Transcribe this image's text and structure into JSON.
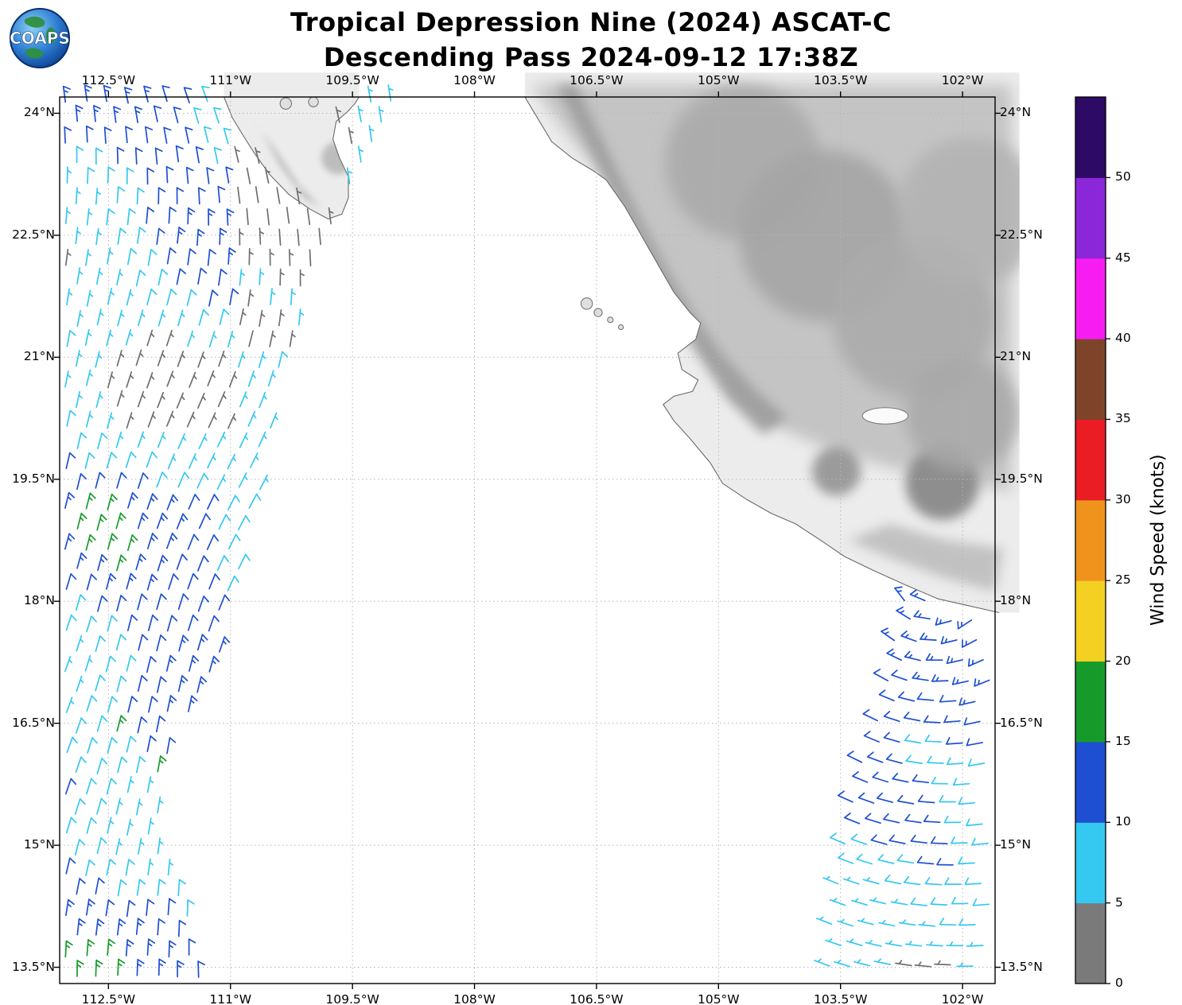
{
  "header": {
    "title_line1": "Tropical Depression Nine (2024) ASCAT-C",
    "title_line2": "Descending Pass 2024-09-12 17:38Z",
    "logo_text": "COAPS"
  },
  "chart_data": {
    "type": "wind_barb_map",
    "title": "Tropical Depression Nine (2024) ASCAT-C",
    "subtitle": "Descending Pass 2024-09-12 17:38Z",
    "projection": "lon-lat",
    "xlim": [
      -113.1,
      -101.6
    ],
    "ylim": [
      13.3,
      24.2
    ],
    "grid": "dotted",
    "x_ticks": [
      {
        "lon": -112.5,
        "label": "112.5°W"
      },
      {
        "lon": -111.0,
        "label": "111°W"
      },
      {
        "lon": -109.5,
        "label": "109.5°W"
      },
      {
        "lon": -108.0,
        "label": "108°W"
      },
      {
        "lon": -106.5,
        "label": "106.5°W"
      },
      {
        "lon": -105.0,
        "label": "105°W"
      },
      {
        "lon": -103.5,
        "label": "103.5°W"
      },
      {
        "lon": -102.0,
        "label": "102°W"
      }
    ],
    "y_ticks": [
      {
        "lat": 24.0,
        "label": "24°N"
      },
      {
        "lat": 22.5,
        "label": "22.5°N"
      },
      {
        "lat": 21.0,
        "label": "21°N"
      },
      {
        "lat": 19.5,
        "label": "19.5°N"
      },
      {
        "lat": 18.0,
        "label": "18°N"
      },
      {
        "lat": 16.5,
        "label": "16.5°N"
      },
      {
        "lat": 15.0,
        "label": "15°N"
      },
      {
        "lat": 13.5,
        "label": "13.5°N"
      }
    ],
    "colorbar": {
      "label": "Wind Speed (knots)",
      "min": 0,
      "max": 55,
      "tick_values": [
        0,
        5,
        10,
        15,
        20,
        25,
        30,
        35,
        40,
        45,
        50
      ],
      "segments": [
        {
          "from": 0,
          "to": 5,
          "color": "#7a7a7a"
        },
        {
          "from": 5,
          "to": 10,
          "color": "#35c8f0"
        },
        {
          "from": 10,
          "to": 15,
          "color": "#1e4fd2"
        },
        {
          "from": 15,
          "to": 20,
          "color": "#169b2a"
        },
        {
          "from": 20,
          "to": 25,
          "color": "#f3d021"
        },
        {
          "from": 25,
          "to": 30,
          "color": "#f0931d"
        },
        {
          "from": 30,
          "to": 35,
          "color": "#ea1c24"
        },
        {
          "from": 35,
          "to": 40,
          "color": "#7e4429"
        },
        {
          "from": 40,
          "to": 45,
          "color": "#f71df2"
        },
        {
          "from": 45,
          "to": 50,
          "color": "#8b27d8"
        },
        {
          "from": 50,
          "to": 55,
          "color": "#2d0a66"
        }
      ]
    },
    "barb_speed_colors": {
      "lt5": "#6f6f6f",
      "5_10": "#35c8f0",
      "10_15": "#1e4fd2",
      "15_20": "#169b2a"
    },
    "coastlines": {
      "baja_peninsula_tip": [
        [
          -111.08,
          24.2
        ],
        [
          -110.98,
          23.95
        ],
        [
          -110.84,
          23.72
        ],
        [
          -110.7,
          23.5
        ],
        [
          -110.52,
          23.25
        ],
        [
          -110.28,
          23.0
        ],
        [
          -110.02,
          22.82
        ],
        [
          -109.8,
          22.7
        ],
        [
          -109.63,
          22.76
        ],
        [
          -109.55,
          22.96
        ],
        [
          -109.55,
          23.22
        ],
        [
          -109.66,
          23.45
        ],
        [
          -109.74,
          23.68
        ],
        [
          -109.7,
          23.9
        ],
        [
          -109.56,
          24.02
        ],
        [
          -109.47,
          24.12
        ],
        [
          -109.42,
          24.2
        ]
      ],
      "mainland_coast": [
        [
          -107.38,
          24.2
        ],
        [
          -107.2,
          23.9
        ],
        [
          -107.05,
          23.65
        ],
        [
          -106.8,
          23.45
        ],
        [
          -106.55,
          23.3
        ],
        [
          -106.38,
          23.18
        ],
        [
          -106.15,
          22.85
        ],
        [
          -105.95,
          22.5
        ],
        [
          -105.75,
          22.15
        ],
        [
          -105.55,
          21.8
        ],
        [
          -105.35,
          21.55
        ],
        [
          -105.22,
          21.42
        ],
        [
          -105.28,
          21.22
        ],
        [
          -105.5,
          21.05
        ],
        [
          -105.45,
          20.85
        ],
        [
          -105.25,
          20.72
        ],
        [
          -105.32,
          20.58
        ],
        [
          -105.55,
          20.52
        ],
        [
          -105.68,
          20.42
        ],
        [
          -105.55,
          20.22
        ],
        [
          -105.35,
          20.0
        ],
        [
          -105.1,
          19.7
        ],
        [
          -104.95,
          19.45
        ],
        [
          -104.65,
          19.25
        ],
        [
          -104.35,
          19.08
        ],
        [
          -104.05,
          18.95
        ],
        [
          -103.7,
          18.72
        ],
        [
          -103.45,
          18.55
        ],
        [
          -103.1,
          18.38
        ],
        [
          -102.7,
          18.2
        ],
        [
          -102.3,
          18.03
        ],
        [
          -101.95,
          17.95
        ],
        [
          -101.55,
          17.86
        ]
      ],
      "la_paz_islands": [
        {
          "lon": -110.32,
          "lat": 24.12,
          "r": 0.07
        },
        {
          "lon": -109.98,
          "lat": 24.14,
          "r": 0.06
        }
      ],
      "islas_marias": [
        {
          "lon": -106.62,
          "lat": 21.66,
          "r": 0.07
        },
        {
          "lon": -106.48,
          "lat": 21.55,
          "r": 0.05
        },
        {
          "lon": -106.33,
          "lat": 21.46,
          "r": 0.035
        },
        {
          "lon": -106.2,
          "lat": 21.37,
          "r": 0.03
        }
      ],
      "lake_chapala": {
        "lon": -102.95,
        "lat": 20.28,
        "rx": 0.28,
        "ry": 0.1
      }
    },
    "terrain_patches": [
      {
        "pts": [
          [
            -107.3,
            24.35
          ],
          [
            -106.9,
            23.8
          ],
          [
            -106.4,
            23.2
          ],
          [
            -105.9,
            22.4
          ],
          [
            -105.5,
            21.7
          ],
          [
            -105.1,
            21.1
          ],
          [
            -104.7,
            20.5
          ],
          [
            -104.2,
            20.1
          ],
          [
            -103.6,
            19.85
          ],
          [
            -102.9,
            19.65
          ],
          [
            -102.2,
            19.5
          ],
          [
            -101.4,
            19.35
          ],
          [
            -101.4,
            24.35
          ]
        ],
        "color": "#c4c4c4",
        "blur": "b10",
        "opacity": 1
      },
      {
        "pts": [
          [
            -106.75,
            24.35
          ],
          [
            -106.35,
            23.5
          ],
          [
            -105.95,
            22.7
          ],
          [
            -105.6,
            22.05
          ],
          [
            -105.3,
            21.55
          ],
          [
            -104.95,
            21.05
          ],
          [
            -104.55,
            20.6
          ],
          [
            -104.15,
            20.25
          ],
          [
            -104.45,
            20.05
          ],
          [
            -104.9,
            20.5
          ],
          [
            -105.3,
            21.1
          ],
          [
            -105.7,
            21.8
          ],
          [
            -106.1,
            22.6
          ],
          [
            -106.55,
            23.5
          ],
          [
            -107.0,
            24.35
          ]
        ],
        "color": "#9b9b9b",
        "blur": "b7",
        "opacity": 0.9
      },
      {
        "circle": [
          -104.7,
          23.4,
          0.95
        ],
        "color": "#aaaaaa",
        "blur": "b10",
        "opacity": 0.9
      },
      {
        "circle": [
          -103.7,
          22.5,
          1.05
        ],
        "color": "#a5a5a5",
        "blur": "b10",
        "opacity": 0.9
      },
      {
        "circle": [
          -102.6,
          21.5,
          1.0
        ],
        "color": "#ababab",
        "blur": "b10",
        "opacity": 0.9
      },
      {
        "circle": [
          -101.9,
          22.8,
          0.9
        ],
        "color": "#b2b2b2",
        "blur": "b10",
        "opacity": 0.85
      },
      {
        "circle": [
          -102.25,
          19.45,
          0.45
        ],
        "color": "#8a8a8a",
        "blur": "b7",
        "opacity": 0.95
      },
      {
        "circle": [
          -103.55,
          19.6,
          0.3
        ],
        "color": "#939393",
        "blur": "b7",
        "opacity": 0.9
      },
      {
        "circle": [
          -102.0,
          20.3,
          0.7
        ],
        "color": "#a8a8a8",
        "blur": "b10",
        "opacity": 0.85
      },
      {
        "pts": [
          [
            -103.4,
            18.75
          ],
          [
            -102.8,
            18.5
          ],
          [
            -102.2,
            18.28
          ],
          [
            -101.6,
            18.12
          ],
          [
            -101.5,
            18.65
          ],
          [
            -102.2,
            18.75
          ],
          [
            -102.9,
            18.95
          ]
        ],
        "color": "#bdbdbd",
        "blur": "b7",
        "opacity": 0.9
      },
      {
        "pts": [
          [
            -110.75,
            23.95
          ],
          [
            -110.45,
            23.55
          ],
          [
            -110.15,
            23.1
          ],
          [
            -109.9,
            22.85
          ],
          [
            -110.08,
            22.95
          ],
          [
            -110.38,
            23.35
          ],
          [
            -110.62,
            23.78
          ]
        ],
        "color": "#aeaeae",
        "blur": "b4",
        "opacity": 0.9
      },
      {
        "circle": [
          -109.68,
          23.45,
          0.2
        ],
        "color": "#b5b5b5",
        "blur": "b4",
        "opacity": 0.85
      }
    ],
    "swaths": [
      {
        "name": "west-descending-swath",
        "lat_min": 13.36,
        "lat_max": 24.14,
        "lon_west": -113.02,
        "east_edge": [
          [
            13.3,
            -111.2
          ],
          [
            14.2,
            -111.5
          ],
          [
            15.2,
            -111.85
          ],
          [
            16.3,
            -111.7
          ],
          [
            17.4,
            -111.1
          ],
          [
            18.2,
            -110.9
          ],
          [
            19.5,
            -110.6
          ],
          [
            20.8,
            -110.32
          ],
          [
            21.8,
            -110.0
          ],
          [
            22.5,
            -109.6
          ],
          [
            23.4,
            -109.2
          ],
          [
            24.2,
            -108.8
          ]
        ],
        "spacing_deg": 0.25,
        "flow": "northerly",
        "base_speed_kt": 9.5,
        "speed_range_kt": [
          2,
          16
        ],
        "calm_zone": {
          "lon_min": -110.9,
          "lon_max": -109.5,
          "lat_min": 20.9,
          "lat_max": 23.7
        }
      },
      {
        "name": "southeast-coastal-swath",
        "lat_min": 13.36,
        "lat_max": 18.02,
        "lon_east": -101.68,
        "west_edge": [
          [
            13.35,
            -103.65
          ],
          [
            14.0,
            -103.6
          ],
          [
            15.0,
            -103.45
          ],
          [
            16.0,
            -103.25
          ],
          [
            16.6,
            -103.0
          ],
          [
            17.2,
            -102.9
          ],
          [
            18.05,
            -102.7
          ]
        ],
        "spacing_deg": 0.25,
        "flow": "cyclonic",
        "circulation_center": [
          -102.35,
          18.35
        ],
        "base_speed_kt": 13,
        "speed_range_kt": [
          5,
          16
        ]
      }
    ]
  }
}
